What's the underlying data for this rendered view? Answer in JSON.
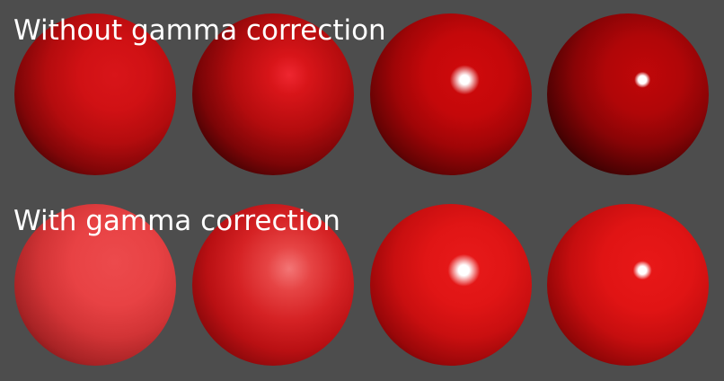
{
  "labels": {
    "top": "Without gamma correction",
    "bottom": "With gamma correction"
  },
  "background_color": "#4d4d4d",
  "label_color": "#ffffff",
  "rows": [
    {
      "name": "without-gamma",
      "spheres": [
        "sphere-without-gamma-1",
        "sphere-without-gamma-2",
        "sphere-without-gamma-3",
        "sphere-without-gamma-4"
      ]
    },
    {
      "name": "with-gamma",
      "spheres": [
        "sphere-with-gamma-1",
        "sphere-with-gamma-2",
        "sphere-with-gamma-3",
        "sphere-with-gamma-4"
      ]
    }
  ]
}
